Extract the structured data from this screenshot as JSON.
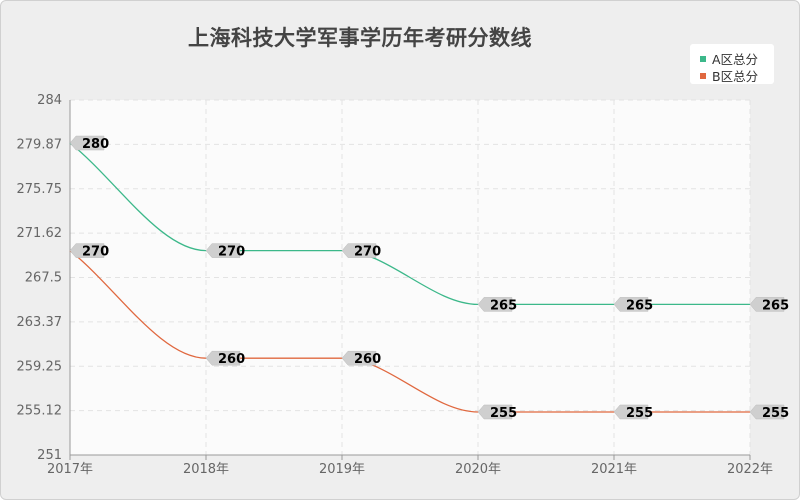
{
  "chart_data": {
    "type": "line",
    "title": "上海科技大学军事学历年考研分数线",
    "categories": [
      "2017年",
      "2018年",
      "2019年",
      "2020年",
      "2021年",
      "2022年"
    ],
    "y_ticks": [
      "251",
      "255.12",
      "259.25",
      "263.37",
      "267.5",
      "271.62",
      "275.75",
      "279.87",
      "284"
    ],
    "ylim": [
      251,
      284
    ],
    "grid": true,
    "legend_position": "top-right",
    "series": [
      {
        "name": "A区总分",
        "color": "#3cb88a",
        "values": [
          280,
          270,
          270,
          265,
          265,
          265
        ]
      },
      {
        "name": "B区总分",
        "color": "#e0683f",
        "values": [
          270,
          260,
          260,
          255,
          255,
          255
        ]
      }
    ]
  }
}
